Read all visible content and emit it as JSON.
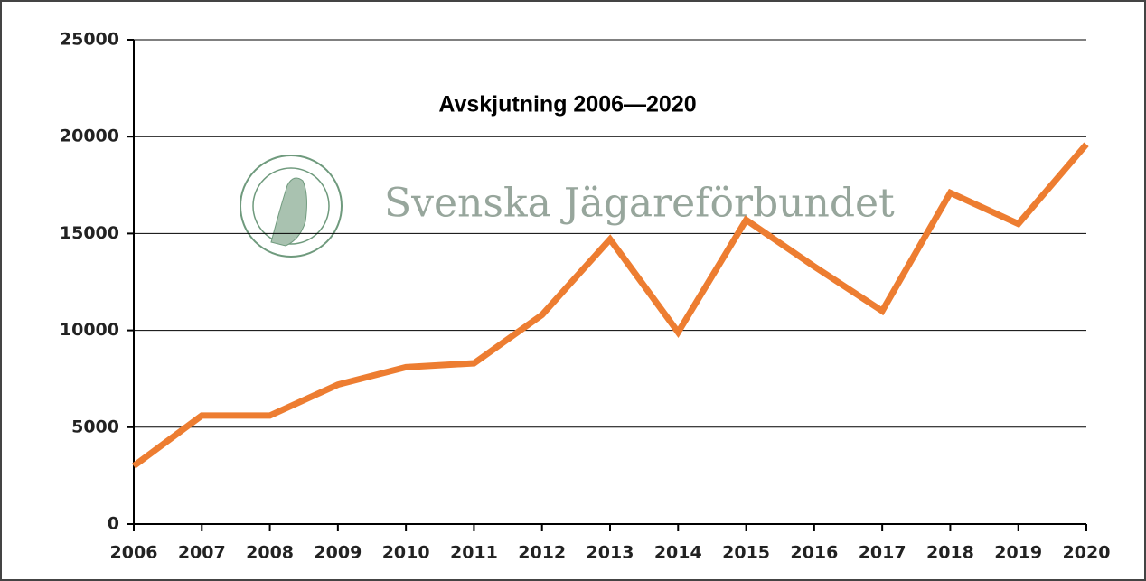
{
  "chart_data": {
    "type": "line",
    "title": "Avskjutning 2006—2020",
    "watermark": "Svenska Jägareförbundet",
    "categories": [
      "2006",
      "2007",
      "2008",
      "2009",
      "2010",
      "2011",
      "2012",
      "2013",
      "2014",
      "2015",
      "2016",
      "2017",
      "2018",
      "2019",
      "2020"
    ],
    "series": [
      {
        "color": "#ed7d31",
        "values": [
          3000,
          5600,
          5600,
          7200,
          8100,
          8300,
          10800,
          14700,
          9900,
          15700,
          13300,
          11000,
          17100,
          15500,
          19600
        ]
      }
    ],
    "ylim": [
      0,
      25000
    ],
    "yticks": [
      0,
      5000,
      10000,
      15000,
      20000,
      25000
    ],
    "grid": true
  }
}
